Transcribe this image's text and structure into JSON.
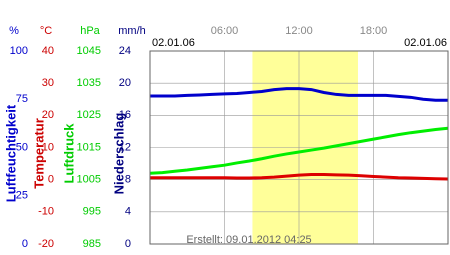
{
  "chart_data": {
    "type": "line",
    "date_left": "02.01.06",
    "date_right": "02.01.06",
    "footer": "Erstellt: 09.01.2012 04:25",
    "x": [
      0,
      1,
      2,
      3,
      4,
      5,
      6,
      7,
      8,
      9,
      10,
      11,
      12,
      13,
      14,
      15,
      16,
      17,
      18,
      19,
      20,
      21,
      22,
      23,
      24
    ],
    "xlim": [
      0,
      24
    ],
    "xticks": [
      {
        "value": 6,
        "label": "06:00"
      },
      {
        "value": 12,
        "label": "12:00"
      },
      {
        "value": 18,
        "label": "18:00"
      }
    ],
    "daylight": [
      8.25,
      16.75
    ],
    "daylight_color": "#ffff99",
    "axes": [
      {
        "unit": "%",
        "label": "Luftfeuchtigkeit",
        "color": "#0000cc",
        "ylim": [
          0,
          100
        ],
        "yticks": [
          0,
          25,
          50,
          75,
          100
        ]
      },
      {
        "unit": "°C",
        "label": "Temperatur",
        "color": "#cc0000",
        "ylim": [
          -20,
          40
        ],
        "yticks": [
          -20,
          -10,
          0,
          10,
          20,
          30,
          40
        ]
      },
      {
        "unit": "hPa",
        "label": "Luftdruck",
        "color": "#00cc00",
        "ylim": [
          985,
          1045
        ],
        "yticks": [
          985,
          995,
          1005,
          1015,
          1025,
          1035,
          1045
        ],
        "grid": true
      },
      {
        "unit": "mm/h",
        "label": "Niederschlag",
        "color": "#000080",
        "ylim": [
          0,
          24
        ],
        "yticks": [
          0,
          4,
          8,
          12,
          16,
          20,
          24
        ]
      }
    ],
    "series": [
      {
        "name": "Luftfeuchtigkeit",
        "axis": 0,
        "color": "#0000cc",
        "values": [
          76.7,
          76.7,
          76.7,
          77,
          77.2,
          77.5,
          77.8,
          78,
          78.5,
          79,
          80,
          80.5,
          80.5,
          80,
          78.5,
          77.5,
          77,
          77,
          77,
          77,
          76.5,
          76,
          75,
          74.5,
          74.5
        ]
      },
      {
        "name": "Luftdruck",
        "axis": 2,
        "color": "#00ee00",
        "values": [
          1007,
          1007.2,
          1007.6,
          1008,
          1008.5,
          1009,
          1009.5,
          1010.2,
          1010.8,
          1011.5,
          1012.3,
          1013,
          1013.6,
          1014.2,
          1014.8,
          1015.5,
          1016.2,
          1016.9,
          1017.6,
          1018.3,
          1019,
          1019.6,
          1020.1,
          1020.6,
          1021
        ]
      },
      {
        "name": "Temperatur",
        "axis": 1,
        "color": "#dd0000",
        "values": [
          0.6,
          0.6,
          0.6,
          0.6,
          0.6,
          0.6,
          0.6,
          0.5,
          0.5,
          0.6,
          0.8,
          1.1,
          1.4,
          1.6,
          1.6,
          1.5,
          1.4,
          1.2,
          1,
          0.8,
          0.6,
          0.5,
          0.4,
          0.3,
          0.2
        ]
      }
    ]
  }
}
